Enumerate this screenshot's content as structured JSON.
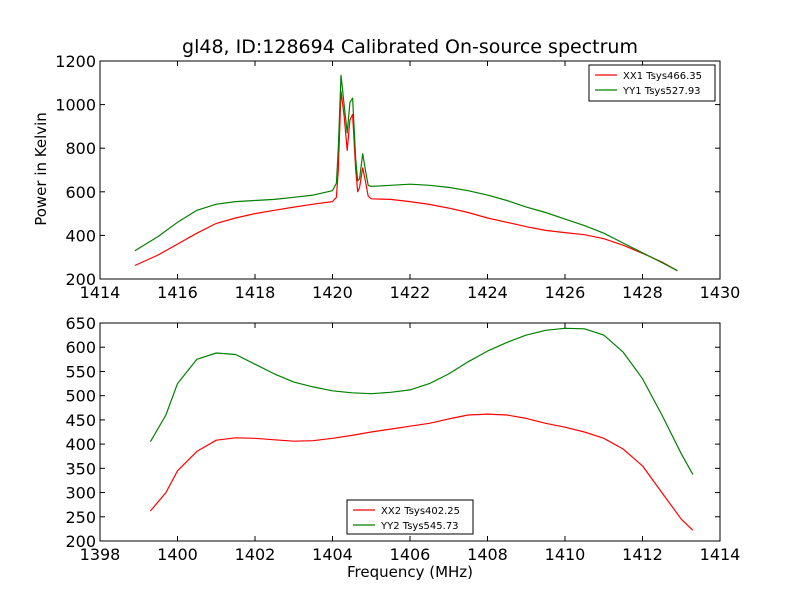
{
  "title": "gl48, ID:128694 Calibrated On-source spectrum",
  "ylabel": "Power in Kelvin",
  "xlabel": "Frequency (MHz)",
  "chart_data": [
    {
      "type": "line",
      "xlim": [
        1414,
        1430
      ],
      "ylim": [
        200,
        1200
      ],
      "xticks": [
        1414,
        1416,
        1418,
        1420,
        1422,
        1424,
        1426,
        1428,
        1430
      ],
      "yticks": [
        200,
        400,
        600,
        800,
        1000,
        1200
      ],
      "legend_position": "top-right",
      "series": [
        {
          "name": "XX1 Tsys466.35",
          "color": "#ff0000",
          "points": [
            [
              1414.9,
              262
            ],
            [
              1415.5,
              310
            ],
            [
              1416.0,
              360
            ],
            [
              1416.5,
              410
            ],
            [
              1417.0,
              455
            ],
            [
              1417.5,
              480
            ],
            [
              1418.0,
              500
            ],
            [
              1418.5,
              515
            ],
            [
              1419.0,
              530
            ],
            [
              1419.5,
              543
            ],
            [
              1420.0,
              555
            ],
            [
              1420.1,
              575
            ],
            [
              1420.15,
              700
            ],
            [
              1420.22,
              1060
            ],
            [
              1420.3,
              950
            ],
            [
              1420.38,
              790
            ],
            [
              1420.45,
              930
            ],
            [
              1420.52,
              955
            ],
            [
              1420.6,
              700
            ],
            [
              1420.65,
              600
            ],
            [
              1420.7,
              620
            ],
            [
              1420.78,
              710
            ],
            [
              1420.85,
              650
            ],
            [
              1420.92,
              580
            ],
            [
              1421.0,
              568
            ],
            [
              1421.5,
              565
            ],
            [
              1422.0,
              555
            ],
            [
              1422.5,
              542
            ],
            [
              1423.0,
              525
            ],
            [
              1423.5,
              505
            ],
            [
              1424.0,
              480
            ],
            [
              1424.5,
              460
            ],
            [
              1425.0,
              440
            ],
            [
              1425.5,
              423
            ],
            [
              1426.0,
              413
            ],
            [
              1426.5,
              403
            ],
            [
              1427.0,
              385
            ],
            [
              1427.5,
              355
            ],
            [
              1428.0,
              318
            ],
            [
              1428.5,
              278
            ],
            [
              1428.9,
              238
            ]
          ]
        },
        {
          "name": "YY1 Tsys527.93",
          "color": "#008000",
          "points": [
            [
              1414.9,
              330
            ],
            [
              1415.5,
              395
            ],
            [
              1416.0,
              460
            ],
            [
              1416.5,
              515
            ],
            [
              1417.0,
              543
            ],
            [
              1417.5,
              555
            ],
            [
              1418.0,
              560
            ],
            [
              1418.5,
              565
            ],
            [
              1419.0,
              575
            ],
            [
              1419.5,
              585
            ],
            [
              1420.0,
              605
            ],
            [
              1420.1,
              640
            ],
            [
              1420.15,
              800
            ],
            [
              1420.22,
              1135
            ],
            [
              1420.3,
              1000
            ],
            [
              1420.38,
              870
            ],
            [
              1420.45,
              1010
            ],
            [
              1420.52,
              1030
            ],
            [
              1420.6,
              750
            ],
            [
              1420.65,
              650
            ],
            [
              1420.7,
              660
            ],
            [
              1420.78,
              775
            ],
            [
              1420.85,
              700
            ],
            [
              1420.92,
              630
            ],
            [
              1421.0,
              625
            ],
            [
              1421.5,
              630
            ],
            [
              1422.0,
              635
            ],
            [
              1422.5,
              630
            ],
            [
              1423.0,
              620
            ],
            [
              1423.5,
              605
            ],
            [
              1424.0,
              585
            ],
            [
              1424.5,
              560
            ],
            [
              1425.0,
              530
            ],
            [
              1425.5,
              505
            ],
            [
              1426.0,
              475
            ],
            [
              1426.5,
              445
            ],
            [
              1427.0,
              410
            ],
            [
              1427.5,
              365
            ],
            [
              1428.0,
              320
            ],
            [
              1428.5,
              275
            ],
            [
              1428.9,
              238
            ]
          ]
        }
      ]
    },
    {
      "type": "line",
      "xlim": [
        1398,
        1414
      ],
      "ylim": [
        200,
        650
      ],
      "xticks": [
        1398,
        1400,
        1402,
        1404,
        1406,
        1408,
        1410,
        1412,
        1414
      ],
      "yticks": [
        200,
        250,
        300,
        350,
        400,
        450,
        500,
        550,
        600,
        650
      ],
      "legend_position": "lower-center",
      "series": [
        {
          "name": "XX2 Tsys402.25",
          "color": "#ff0000",
          "points": [
            [
              1399.3,
              262
            ],
            [
              1399.7,
              300
            ],
            [
              1400.0,
              345
            ],
            [
              1400.5,
              385
            ],
            [
              1401.0,
              408
            ],
            [
              1401.5,
              413
            ],
            [
              1402.0,
              412
            ],
            [
              1402.5,
              409
            ],
            [
              1403.0,
              406
            ],
            [
              1403.5,
              407
            ],
            [
              1404.0,
              412
            ],
            [
              1404.5,
              418
            ],
            [
              1405.0,
              425
            ],
            [
              1405.5,
              431
            ],
            [
              1406.0,
              437
            ],
            [
              1406.5,
              443
            ],
            [
              1407.0,
              452
            ],
            [
              1407.5,
              460
            ],
            [
              1408.0,
              462
            ],
            [
              1408.5,
              460
            ],
            [
              1409.0,
              453
            ],
            [
              1409.5,
              443
            ],
            [
              1410.0,
              435
            ],
            [
              1410.5,
              425
            ],
            [
              1411.0,
              412
            ],
            [
              1411.5,
              390
            ],
            [
              1412.0,
              355
            ],
            [
              1412.5,
              300
            ],
            [
              1413.0,
              245
            ],
            [
              1413.3,
              222
            ]
          ]
        },
        {
          "name": "YY2 Tsys545.73",
          "color": "#008000",
          "points": [
            [
              1399.3,
              405
            ],
            [
              1399.7,
              460
            ],
            [
              1400.0,
              525
            ],
            [
              1400.5,
              575
            ],
            [
              1401.0,
              588
            ],
            [
              1401.5,
              585
            ],
            [
              1402.0,
              565
            ],
            [
              1402.5,
              545
            ],
            [
              1403.0,
              528
            ],
            [
              1403.5,
              518
            ],
            [
              1404.0,
              510
            ],
            [
              1404.5,
              506
            ],
            [
              1405.0,
              504
            ],
            [
              1405.5,
              507
            ],
            [
              1406.0,
              512
            ],
            [
              1406.5,
              525
            ],
            [
              1407.0,
              545
            ],
            [
              1407.5,
              570
            ],
            [
              1408.0,
              592
            ],
            [
              1408.5,
              610
            ],
            [
              1409.0,
              625
            ],
            [
              1409.5,
              635
            ],
            [
              1410.0,
              639
            ],
            [
              1410.5,
              638
            ],
            [
              1411.0,
              625
            ],
            [
              1411.5,
              590
            ],
            [
              1412.0,
              535
            ],
            [
              1412.5,
              460
            ],
            [
              1413.0,
              380
            ],
            [
              1413.3,
              337
            ]
          ]
        }
      ]
    }
  ]
}
